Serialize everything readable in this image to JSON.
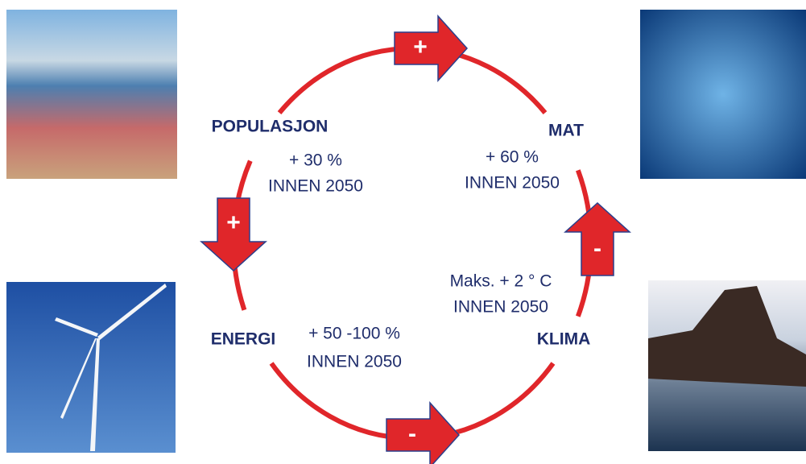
{
  "nodes": [
    {
      "label": "POPULASJON",
      "change": "+ 30 %",
      "horizon": "INNEN 2050"
    },
    {
      "label": "MAT",
      "change": "+ 60 %",
      "horizon": "INNEN 2050"
    },
    {
      "label": "KLIMA",
      "change": "Maks. + 2 ° C",
      "horizon": "INNEN 2050"
    },
    {
      "label": "ENERGI",
      "change": "+ 50 -100 %",
      "horizon": "INNEN 2050"
    }
  ],
  "arrows": [
    {
      "sign": "+"
    },
    {
      "sign": "-"
    },
    {
      "sign": "-"
    },
    {
      "sign": "+"
    }
  ]
}
